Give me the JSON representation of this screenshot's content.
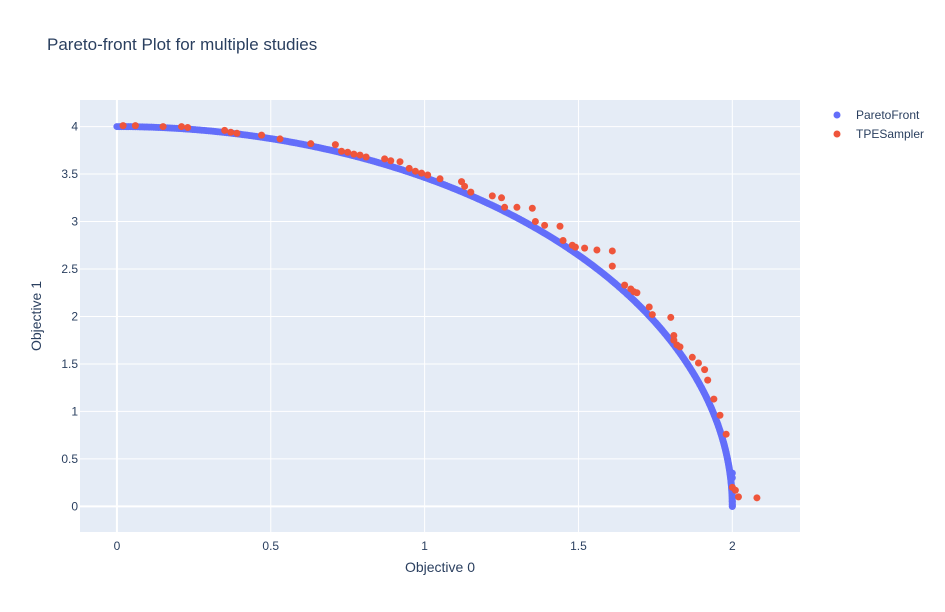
{
  "chart_data": {
    "type": "scatter",
    "title": "Pareto-front Plot for multiple studies",
    "xlabel": "Objective 0",
    "ylabel": "Objective 1",
    "xlim": [
      -0.12,
      2.22
    ],
    "ylim": [
      -0.27,
      4.28
    ],
    "xticks": [
      0,
      0.5,
      1,
      1.5,
      2
    ],
    "yticks": [
      0,
      0.5,
      1,
      1.5,
      2,
      2.5,
      3,
      3.5,
      4
    ],
    "grid": true,
    "legend_position": "top-right",
    "colors": {
      "ParetoFront": "#636efa",
      "TPESampler": "#ef553b",
      "plot_bg": "#e5ecf6",
      "grid": "#ffffff"
    },
    "series": [
      {
        "name": "ParetoFront",
        "curve": "(x/2)^2 + (y/4)^2 = 1",
        "x_range": [
          0,
          2
        ],
        "points_shown": "dense"
      },
      {
        "name": "TPESampler",
        "points": [
          [
            0.02,
            4.01
          ],
          [
            0.06,
            4.01
          ],
          [
            0.15,
            4.0
          ],
          [
            0.21,
            4.0
          ],
          [
            0.23,
            3.99
          ],
          [
            0.35,
            3.96
          ],
          [
            0.37,
            3.94
          ],
          [
            0.39,
            3.93
          ],
          [
            0.47,
            3.91
          ],
          [
            0.53,
            3.87
          ],
          [
            0.63,
            3.82
          ],
          [
            0.71,
            3.81
          ],
          [
            0.73,
            3.74
          ],
          [
            0.75,
            3.73
          ],
          [
            0.77,
            3.71
          ],
          [
            0.79,
            3.7
          ],
          [
            0.81,
            3.68
          ],
          [
            0.87,
            3.66
          ],
          [
            0.89,
            3.64
          ],
          [
            0.92,
            3.63
          ],
          [
            0.95,
            3.56
          ],
          [
            0.97,
            3.53
          ],
          [
            0.99,
            3.51
          ],
          [
            1.01,
            3.49
          ],
          [
            1.05,
            3.45
          ],
          [
            1.12,
            3.42
          ],
          [
            1.13,
            3.37
          ],
          [
            1.15,
            3.31
          ],
          [
            1.22,
            3.27
          ],
          [
            1.25,
            3.25
          ],
          [
            1.26,
            3.15
          ],
          [
            1.3,
            3.15
          ],
          [
            1.35,
            3.14
          ],
          [
            1.36,
            3.0
          ],
          [
            1.39,
            2.96
          ],
          [
            1.44,
            2.95
          ],
          [
            1.45,
            2.8
          ],
          [
            1.48,
            2.75
          ],
          [
            1.49,
            2.73
          ],
          [
            1.52,
            2.72
          ],
          [
            1.56,
            2.7
          ],
          [
            1.61,
            2.69
          ],
          [
            1.61,
            2.53
          ],
          [
            1.65,
            2.33
          ],
          [
            1.67,
            2.29
          ],
          [
            1.68,
            2.26
          ],
          [
            1.69,
            2.25
          ],
          [
            1.73,
            2.1
          ],
          [
            1.74,
            2.02
          ],
          [
            1.8,
            1.99
          ],
          [
            1.81,
            1.8
          ],
          [
            1.81,
            1.75
          ],
          [
            1.82,
            1.7
          ],
          [
            1.83,
            1.68
          ],
          [
            1.87,
            1.57
          ],
          [
            1.89,
            1.51
          ],
          [
            1.91,
            1.44
          ],
          [
            1.92,
            1.33
          ],
          [
            1.94,
            1.13
          ],
          [
            1.96,
            0.96
          ],
          [
            1.98,
            0.76
          ],
          [
            2.0,
            0.2
          ],
          [
            2.01,
            0.17
          ],
          [
            2.02,
            0.1
          ],
          [
            2.08,
            0.09
          ]
        ]
      }
    ]
  }
}
